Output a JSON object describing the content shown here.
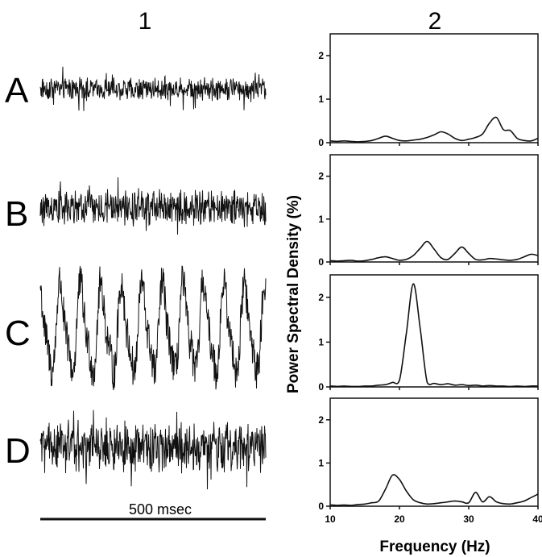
{
  "figure": {
    "column_labels": [
      "1",
      "2"
    ],
    "scale_bar_label": "500 msec",
    "ink_color": "#111111"
  },
  "chart_data": [
    {
      "type": "line",
      "panel": "1",
      "description_of_content": "raw time-series traces",
      "row_labels": [
        "A",
        "B",
        "C",
        "D"
      ],
      "traces": [
        {
          "label": "A",
          "pattern": "noise",
          "amplitude": 0.3
        },
        {
          "label": "B",
          "pattern": "noise",
          "amplitude": 0.4
        },
        {
          "label": "C",
          "pattern": "oscillation",
          "cycles": 11,
          "amplitude": 1.0
        },
        {
          "label": "D",
          "pattern": "noise",
          "amplitude": 0.45
        }
      ],
      "scale_bar": "500 msec"
    },
    {
      "type": "line",
      "panel": "2",
      "xlabel": "Frequency (Hz)",
      "ylabel": "Power Spectral Density (%)",
      "xlim": [
        10,
        40
      ],
      "ylim": [
        0,
        2.5
      ],
      "xticks": [
        10,
        20,
        30,
        40
      ],
      "yticks": [
        0,
        1,
        2
      ],
      "x": [
        10,
        11,
        12,
        13,
        14,
        15,
        16,
        17,
        18,
        19,
        20,
        21,
        22,
        23,
        24,
        25,
        26,
        27,
        28,
        29,
        30,
        31,
        32,
        33,
        34,
        35,
        36,
        37,
        38,
        39,
        40
      ],
      "series": [
        {
          "label": "A",
          "values": [
            0.04,
            0.03,
            0.04,
            0.03,
            0.02,
            0.03,
            0.05,
            0.1,
            0.15,
            0.1,
            0.05,
            0.04,
            0.06,
            0.08,
            0.12,
            0.18,
            0.25,
            0.2,
            0.1,
            0.05,
            0.08,
            0.12,
            0.2,
            0.45,
            0.58,
            0.3,
            0.28,
            0.1,
            0.05,
            0.04,
            0.1
          ]
        },
        {
          "label": "B",
          "values": [
            0.03,
            0.02,
            0.03,
            0.04,
            0.02,
            0.03,
            0.06,
            0.1,
            0.12,
            0.08,
            0.04,
            0.06,
            0.15,
            0.32,
            0.48,
            0.3,
            0.1,
            0.06,
            0.2,
            0.35,
            0.2,
            0.06,
            0.05,
            0.08,
            0.07,
            0.05,
            0.04,
            0.06,
            0.12,
            0.18,
            0.15
          ]
        },
        {
          "label": "C",
          "values": [
            0.02,
            0.01,
            0.02,
            0.01,
            0.01,
            0.02,
            0.02,
            0.04,
            0.05,
            0.1,
            0.15,
            1.2,
            2.3,
            1.3,
            0.1,
            0.08,
            0.05,
            0.07,
            0.04,
            0.05,
            0.03,
            0.04,
            0.02,
            0.03,
            0.02,
            0.02,
            0.01,
            0.02,
            0.01,
            0.02,
            0.02
          ]
        },
        {
          "label": "D",
          "values": [
            0.03,
            0.02,
            0.03,
            0.02,
            0.04,
            0.05,
            0.08,
            0.12,
            0.4,
            0.72,
            0.62,
            0.35,
            0.15,
            0.08,
            0.05,
            0.06,
            0.08,
            0.1,
            0.12,
            0.1,
            0.08,
            0.32,
            0.1,
            0.22,
            0.1,
            0.06,
            0.05,
            0.08,
            0.12,
            0.2,
            0.28
          ]
        }
      ]
    }
  ]
}
